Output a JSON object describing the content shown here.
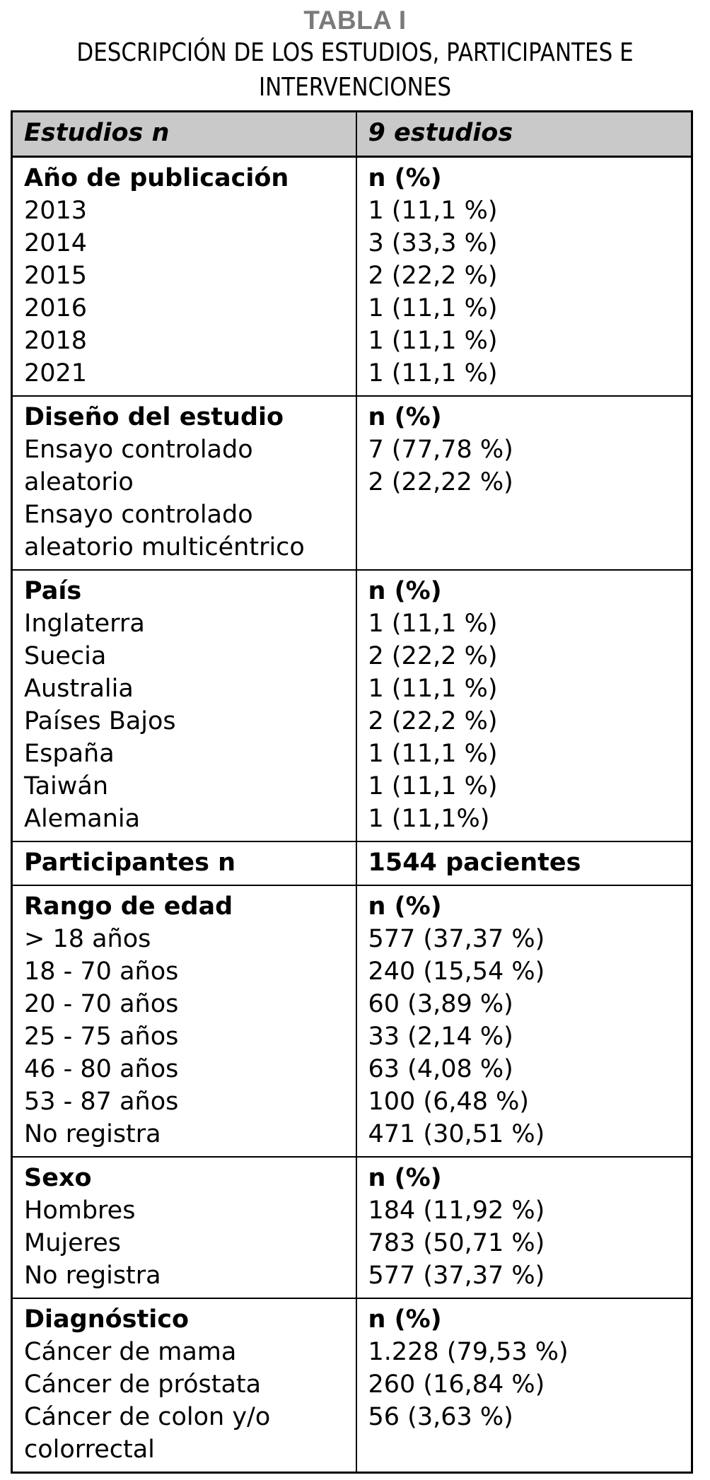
{
  "page": {
    "title": "TABLA I",
    "subtitle_lines": [
      "DESCRIPCIÓN DE LOS ESTUDIOS, PARTICIPANTES E",
      "INTERVENCIONES"
    ]
  },
  "table": {
    "header": {
      "left": "Estudios n",
      "right": "9 estudios"
    },
    "sections": [
      {
        "left": [
          "Año de publicación",
          "2013",
          "2014",
          "2015",
          "2016",
          "2018",
          "2021"
        ],
        "right": [
          "n (%)",
          "1 (11,1 %)",
          "3 (33,3 %)",
          "2 (22,2 %)",
          "1 (11,1 %)",
          "1 (11,1 %)",
          "1 (11,1 %)"
        ]
      },
      {
        "left": [
          "Diseño del estudio",
          "Ensayo controlado",
          "aleatorio",
          "Ensayo controlado",
          "aleatorio multicéntrico"
        ],
        "right": [
          "n (%)",
          "7 (77,78 %)",
          "2 (22,22 %)"
        ]
      },
      {
        "left": [
          "País",
          "Inglaterra",
          "Suecia",
          "Australia",
          "Países Bajos",
          "España",
          "Taiwán",
          "Alemania"
        ],
        "right": [
          "n (%)",
          "1 (11,1 %)",
          "2 (22,2 %)",
          "1 (11,1 %)",
          "2 (22,2 %)",
          "1 (11,1 %)",
          "1 (11,1 %)",
          "1 (11,1%)"
        ]
      },
      {
        "left": [
          "Participantes n"
        ],
        "right": [
          "1544 pacientes"
        ]
      },
      {
        "left": [
          "Rango de edad",
          "> 18 años",
          "18 - 70 años",
          "20 - 70 años",
          "25 - 75 años",
          "46 - 80 años",
          "53 - 87 años",
          "No registra"
        ],
        "right": [
          "n (%)",
          "577 (37,37 %)",
          "240 (15,54 %)",
          "60 (3,89 %)",
          "33 (2,14 %)",
          "63 (4,08 %)",
          "100 (6,48 %)",
          "471 (30,51 %)"
        ]
      },
      {
        "left": [
          "Sexo",
          "Hombres",
          "Mujeres",
          "No registra"
        ],
        "right": [
          "n (%)",
          "184 (11,92 %)",
          "783 (50,71 %)",
          "577 (37,37 %)"
        ]
      },
      {
        "left": [
          "Diagnóstico",
          "Cáncer de mama",
          "Cáncer de próstata",
          "Cáncer de colon y/o",
          "colorrectal"
        ],
        "right": [
          "n (%)",
          "1.228 (79,53 %)",
          "260 (16,84 %)",
          "56 (3,63 %)"
        ]
      }
    ]
  },
  "colors": {
    "title_gray": "#7a7a7a",
    "header_bg": "#c9c9c9",
    "border": "#000000",
    "text": "#000000"
  }
}
